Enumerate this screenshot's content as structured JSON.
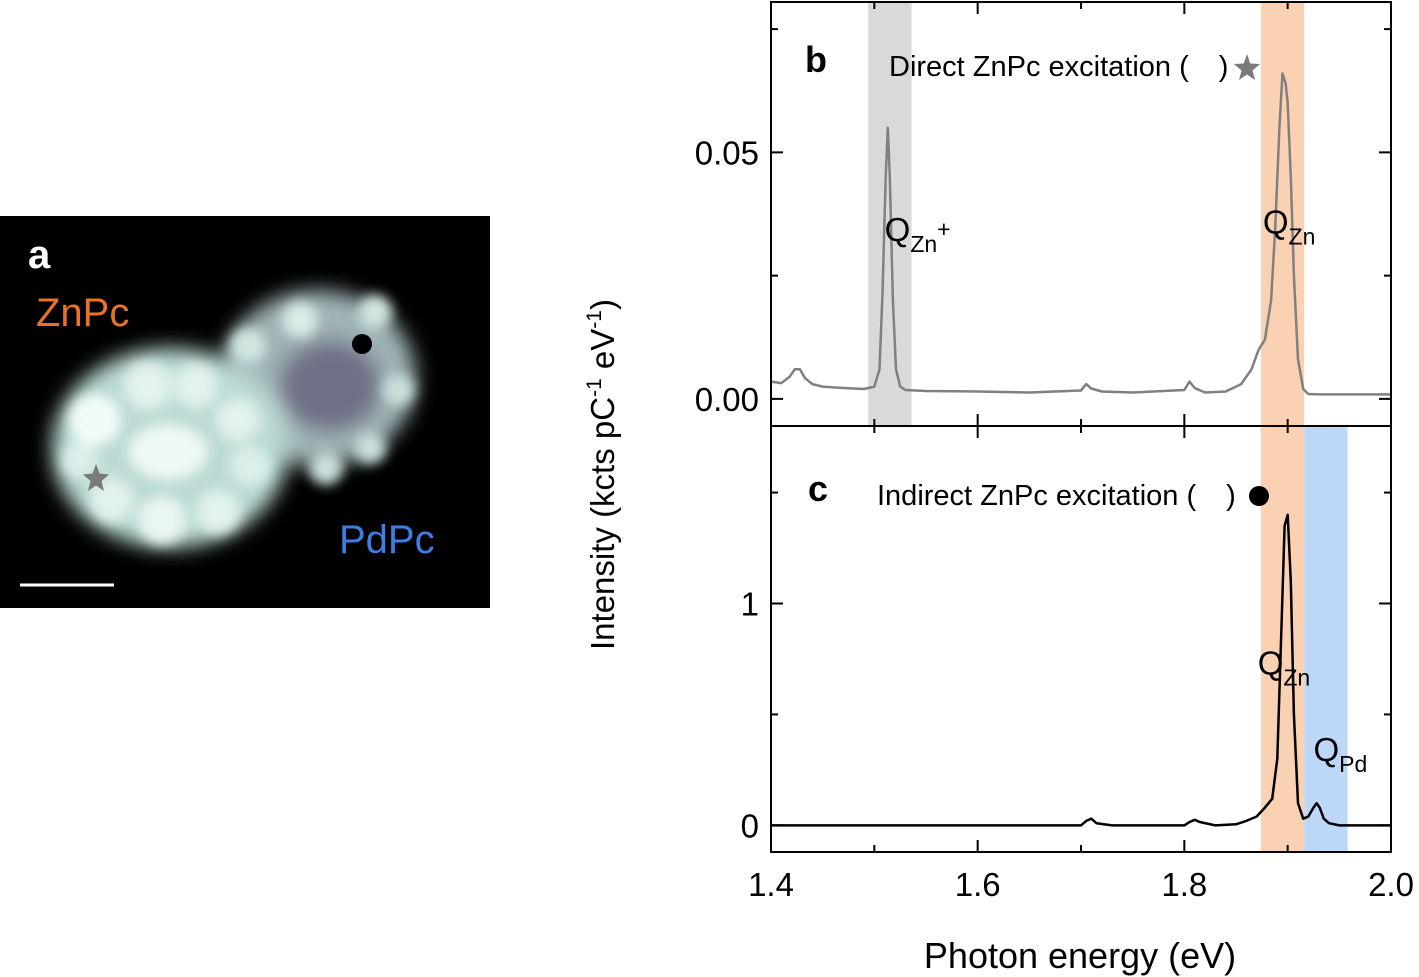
{
  "panel_a": {
    "label": "a",
    "molecule_1": "ZnPc",
    "molecule_2": "PdPc",
    "colors": {
      "background": "#000000",
      "molecule": "#c8e4de",
      "znpc_label": "#e8722a",
      "pdpc_label": "#3b7fe6",
      "star_marker": "#7a7a7a",
      "dot_marker": "#000000"
    },
    "markers": {
      "direct": "star-icon",
      "indirect": "dot-icon"
    }
  },
  "colors": {
    "trace_b": "#808080",
    "trace_c": "#000000",
    "band_gray": "#d9d9d9",
    "band_orange": "#fbd1b3",
    "band_blue": "#bcd7f8"
  },
  "chart_data": [
    {
      "type": "line",
      "panel": "b",
      "title": "Direct ZnPc excitation (",
      "title_end": ")",
      "ylabel_main": "Intensity (kcts pC",
      "ylabel_sup1": "-1",
      "ylabel_mid": " eV",
      "ylabel_sup2": "-1",
      "ylabel_end": ")",
      "xlim": [
        1.4,
        2.0
      ],
      "ylim": [
        -0.0055,
        0.0805
      ],
      "yticks": [
        0.0,
        0.05
      ],
      "ytick_labels": [
        "0.00",
        "0.05"
      ],
      "bands": [
        {
          "x0": 1.494,
          "x1": 1.536,
          "color": "#d9d9d9"
        },
        {
          "x0": 1.874,
          "x1": 1.916,
          "color": "#fbd1b3"
        }
      ],
      "annotations": [
        {
          "text": "Q",
          "sub": "Zn",
          "sup": "+",
          "x": 1.51,
          "y": 0.032
        },
        {
          "text": "Q",
          "sub": "Zn",
          "sup": "",
          "x": 1.876,
          "y": 0.0335
        }
      ],
      "series": [
        {
          "color": "#808080",
          "x": [
            1.4,
            1.41,
            1.418,
            1.423,
            1.428,
            1.433,
            1.44,
            1.45,
            1.47,
            1.49,
            1.5,
            1.505,
            1.508,
            1.511,
            1.513,
            1.515,
            1.518,
            1.521,
            1.525,
            1.53,
            1.55,
            1.6,
            1.65,
            1.7,
            1.705,
            1.71,
            1.72,
            1.75,
            1.8,
            1.805,
            1.81,
            1.82,
            1.84,
            1.855,
            1.865,
            1.872,
            1.878,
            1.884,
            1.888,
            1.892,
            1.895,
            1.898,
            1.9,
            1.903,
            1.906,
            1.91,
            1.915,
            1.92,
            1.93,
            1.95,
            2.0
          ],
          "y": [
            0.0035,
            0.0032,
            0.0045,
            0.006,
            0.006,
            0.0042,
            0.003,
            0.0025,
            0.0022,
            0.002,
            0.0025,
            0.006,
            0.022,
            0.045,
            0.055,
            0.045,
            0.02,
            0.006,
            0.0025,
            0.0018,
            0.0016,
            0.0015,
            0.0013,
            0.0017,
            0.003,
            0.0021,
            0.0015,
            0.0013,
            0.0018,
            0.0035,
            0.0022,
            0.0013,
            0.0015,
            0.003,
            0.006,
            0.01,
            0.012,
            0.02,
            0.035,
            0.055,
            0.066,
            0.064,
            0.06,
            0.045,
            0.025,
            0.008,
            0.002,
            0.001,
            0.0009,
            0.0009,
            0.0009
          ]
        }
      ]
    },
    {
      "type": "line",
      "panel": "c",
      "title": "Indirect ZnPc excitation (",
      "title_end": ")",
      "xlabel": "Photon energy (eV)",
      "xlim": [
        1.4,
        2.0
      ],
      "ylim": [
        -0.12,
        1.8
      ],
      "yticks": [
        0,
        1
      ],
      "ytick_labels": [
        "0",
        "1"
      ],
      "xticks": [
        1.4,
        1.6,
        1.8,
        2.0
      ],
      "xtick_labels": [
        "1.4",
        "1.6",
        "1.8",
        "2.0"
      ],
      "bands": [
        {
          "x0": 1.874,
          "x1": 1.916,
          "color": "#fbd1b3"
        },
        {
          "x0": 1.916,
          "x1": 1.958,
          "color": "#bcd7f8"
        }
      ],
      "annotations": [
        {
          "text": "Q",
          "sub": "Zn",
          "sup": "",
          "x": 1.871,
          "y": 0.68
        },
        {
          "text": "Q",
          "sub": "Pd",
          "sup": "",
          "x": 1.925,
          "y": 0.29
        }
      ],
      "series": [
        {
          "color": "#000000",
          "x": [
            1.4,
            1.5,
            1.6,
            1.7,
            1.705,
            1.71,
            1.715,
            1.73,
            1.75,
            1.8,
            1.805,
            1.81,
            1.815,
            1.83,
            1.85,
            1.86,
            1.87,
            1.878,
            1.885,
            1.89,
            1.894,
            1.897,
            1.9,
            1.903,
            1.906,
            1.91,
            1.915,
            1.92,
            1.925,
            1.928,
            1.931,
            1.935,
            1.94,
            1.95,
            2.0
          ],
          "y": [
            0.0,
            0.0,
            0.0,
            0.0,
            0.02,
            0.03,
            0.01,
            0.0,
            0.0,
            0.0,
            0.015,
            0.025,
            0.015,
            0.0,
            0.005,
            0.02,
            0.04,
            0.08,
            0.12,
            0.3,
            0.9,
            1.35,
            1.4,
            1.1,
            0.5,
            0.1,
            0.03,
            0.04,
            0.08,
            0.1,
            0.08,
            0.03,
            0.01,
            0.0,
            0.0
          ]
        }
      ]
    }
  ]
}
